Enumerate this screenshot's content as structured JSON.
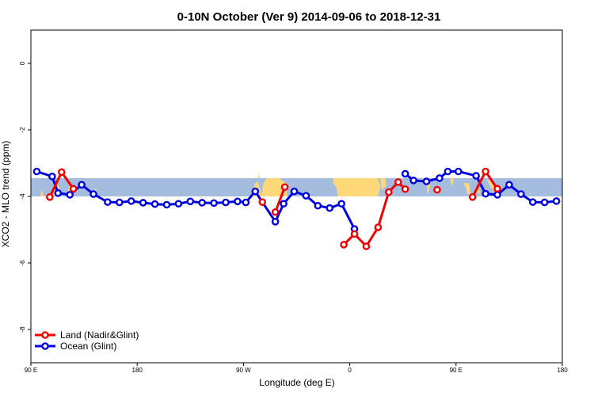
{
  "colors": {
    "land": "#ee0000",
    "ocean": "#0000dd",
    "band_ocean": "#a4bddf",
    "band_land": "#ffd87a",
    "axis": "#000000"
  },
  "chart_data": {
    "type": "line",
    "title": "0-10N October (Ver 9)   2014-09-06 to 2018-12-31",
    "xlabel": "Longitude (deg E)",
    "ylabel": "XCO2 - MLO trend (ppm)",
    "xlim": [
      90,
      540
    ],
    "ylim": [
      -9,
      1
    ],
    "x_ticks": [
      {
        "value": 90,
        "label": "90 E"
      },
      {
        "value": 180,
        "label": "180"
      },
      {
        "value": 270,
        "label": "90 W"
      },
      {
        "value": 360,
        "label": "0"
      },
      {
        "value": 450,
        "label": "90 E"
      },
      {
        "value": 540,
        "label": "180"
      }
    ],
    "y_ticks": [
      {
        "value": 0,
        "label": "0"
      },
      {
        "value": -2,
        "label": "-2"
      },
      {
        "value": -4,
        "label": "-4"
      },
      {
        "value": -6,
        "label": "-6"
      },
      {
        "value": -8,
        "label": "-8"
      }
    ],
    "band": {
      "ymin": -4.0,
      "ymax": -3.45
    },
    "land_regions": [
      {
        "type": "poly",
        "points": [
          [
            98,
            -4.0
          ],
          [
            99,
            -3.8
          ],
          [
            100,
            -3.9
          ],
          [
            101,
            -4.0
          ]
        ]
      },
      {
        "type": "poly",
        "points": [
          [
            108,
            -3.95
          ],
          [
            110,
            -3.65
          ],
          [
            112,
            -3.55
          ],
          [
            114,
            -3.75
          ],
          [
            113,
            -4.0
          ]
        ]
      },
      {
        "type": "poly",
        "points": [
          [
            121,
            -3.9
          ],
          [
            123,
            -3.6
          ],
          [
            125,
            -3.95
          ]
        ]
      },
      {
        "type": "poly",
        "points": [
          [
            143,
            -3.85
          ],
          [
            145,
            -3.75
          ],
          [
            146,
            -4.0
          ]
        ]
      },
      {
        "type": "poly",
        "points": [
          [
            276,
            -4.0
          ],
          [
            278,
            -3.8
          ],
          [
            280,
            -3.6
          ],
          [
            282,
            -3.55
          ],
          [
            284,
            -3.75
          ],
          [
            285,
            -4.0
          ]
        ]
      },
      {
        "type": "poly",
        "points": [
          [
            282,
            -3.45
          ],
          [
            283,
            -3.3
          ],
          [
            284,
            -3.45
          ]
        ]
      },
      {
        "type": "poly",
        "points": [
          [
            285,
            -4.0
          ],
          [
            287,
            -3.6
          ],
          [
            290,
            -3.45
          ],
          [
            300,
            -3.45
          ],
          [
            306,
            -3.6
          ],
          [
            307,
            -4.0
          ]
        ]
      },
      {
        "type": "poly",
        "points": [
          [
            346,
            -3.45
          ],
          [
            384,
            -3.45
          ],
          [
            386,
            -3.7
          ],
          [
            384,
            -4.0
          ],
          [
            350,
            -4.0
          ],
          [
            349,
            -3.75
          ],
          [
            346,
            -3.6
          ]
        ]
      },
      {
        "type": "poly",
        "points": [
          [
            386,
            -3.45
          ],
          [
            390,
            -3.45
          ],
          [
            391,
            -3.7
          ],
          [
            387,
            -3.8
          ]
        ]
      },
      {
        "type": "poly",
        "points": [
          [
            425,
            -3.6
          ],
          [
            427,
            -3.45
          ],
          [
            428,
            -3.7
          ],
          [
            426,
            -3.95
          ]
        ]
      },
      {
        "type": "poly",
        "points": [
          [
            445,
            -3.5
          ],
          [
            446,
            -3.4
          ],
          [
            448,
            -3.5
          ],
          [
            447,
            -3.7
          ]
        ]
      },
      {
        "type": "poly",
        "points": [
          [
            456,
            -3.6
          ],
          [
            458,
            -3.7
          ],
          [
            460,
            -3.95
          ],
          [
            462,
            -3.9
          ],
          [
            461,
            -3.6
          ]
        ]
      },
      {
        "type": "poly",
        "points": [
          [
            467,
            -3.85
          ],
          [
            469,
            -3.75
          ],
          [
            471,
            -3.95
          ]
        ]
      },
      {
        "type": "poly",
        "points": [
          [
            476,
            -3.5
          ],
          [
            480,
            -3.75
          ],
          [
            484,
            -3.95
          ],
          [
            482,
            -3.7
          ],
          [
            478,
            -3.5
          ]
        ]
      },
      {
        "type": "poly",
        "points": [
          [
            486,
            -3.9
          ],
          [
            488,
            -3.7
          ],
          [
            490,
            -3.85
          ]
        ]
      }
    ],
    "series": [
      {
        "name": "Ocean (Glint)",
        "color_key": "ocean",
        "segments": [
          [
            [
              95,
              -3.25
            ],
            [
              108,
              -3.4
            ],
            [
              113,
              -3.9
            ],
            [
              123,
              -3.95
            ],
            [
              133,
              -3.65
            ],
            [
              143,
              -3.93
            ],
            [
              155,
              -4.17
            ],
            [
              165,
              -4.18
            ],
            [
              175,
              -4.14
            ],
            [
              185,
              -4.19
            ],
            [
              195,
              -4.23
            ],
            [
              205,
              -4.25
            ],
            [
              215,
              -4.22
            ],
            [
              225,
              -4.15
            ],
            [
              235,
              -4.19
            ],
            [
              245,
              -4.2
            ],
            [
              255,
              -4.18
            ],
            [
              265,
              -4.15
            ],
            [
              272,
              -4.18
            ],
            [
              280,
              -3.85
            ],
            [
              297,
              -4.76
            ],
            [
              304,
              -4.22
            ],
            [
              313,
              -3.85
            ],
            [
              323,
              -3.98
            ],
            [
              333,
              -4.28
            ],
            [
              343,
              -4.35
            ],
            [
              353,
              -4.22
            ],
            [
              364,
              -4.98
            ]
          ],
          [
            [
              407,
              -3.32
            ],
            [
              414,
              -3.52
            ],
            [
              425,
              -3.55
            ],
            [
              436,
              -3.45
            ],
            [
              443,
              -3.25
            ],
            [
              452,
              -3.25
            ],
            [
              467,
              -3.38
            ],
            [
              475,
              -3.92
            ],
            [
              485,
              -3.95
            ],
            [
              495,
              -3.65
            ],
            [
              505,
              -3.93
            ],
            [
              515,
              -4.17
            ],
            [
              525,
              -4.18
            ],
            [
              535,
              -4.14
            ]
          ]
        ]
      },
      {
        "name": "Land (Nadir&Glint)",
        "color_key": "land",
        "segments": [
          [
            [
              106,
              -4.02
            ],
            [
              116,
              -3.27
            ],
            [
              126,
              -3.77
            ]
          ],
          [
            [
              286,
              -4.17
            ]
          ],
          [
            [
              297,
              -4.47
            ],
            [
              305,
              -3.72
            ]
          ],
          [
            [
              355,
              -5.45
            ],
            [
              364,
              -5.13
            ],
            [
              374,
              -5.5
            ],
            [
              384,
              -4.93
            ],
            [
              393,
              -3.87
            ],
            [
              401,
              -3.57
            ],
            [
              407,
              -3.78
            ]
          ],
          [
            [
              434,
              -3.8
            ]
          ],
          [
            [
              464,
              -4.02
            ],
            [
              475,
              -3.25
            ],
            [
              485,
              -3.77
            ]
          ]
        ]
      }
    ],
    "legend": {
      "position": "bottom-left",
      "entries": [
        {
          "label": "Land (Nadir&Glint)",
          "color_key": "land"
        },
        {
          "label": "Ocean (Glint)",
          "color_key": "ocean"
        }
      ]
    }
  }
}
